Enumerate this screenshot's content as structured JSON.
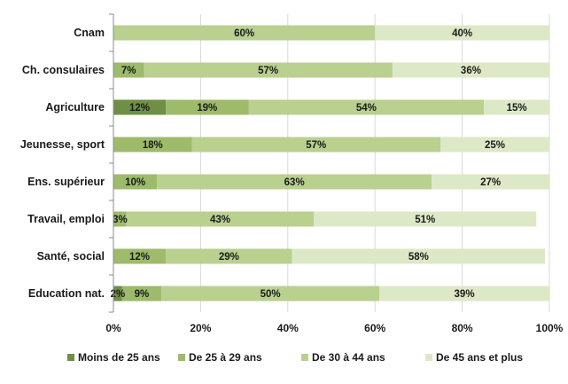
{
  "chart_data": {
    "type": "bar",
    "orientation": "horizontal",
    "stacked": true,
    "categories": [
      "Cnam",
      "Ch. consulaires",
      "Agriculture",
      "Jeunesse, sport",
      "Ens. supérieur",
      "Travail, emploi",
      "Santé, social",
      "Education nat."
    ],
    "series": [
      {
        "name": "Moins de 25 ans",
        "color": "#6e8f45",
        "values": [
          0,
          0,
          12,
          0,
          0,
          0,
          0,
          2
        ],
        "labels": [
          "",
          "",
          "12%",
          "",
          "",
          "",
          "",
          "2%"
        ]
      },
      {
        "name": "De 25 à 29 ans",
        "color": "#9dbb6b",
        "values": [
          0,
          7,
          19,
          18,
          10,
          3,
          12,
          9
        ],
        "labels": [
          "",
          "7%",
          "19%",
          "18%",
          "10%",
          "3%",
          "12%",
          "9%"
        ]
      },
      {
        "name": "De 30 à 44 ans",
        "color": "#b9d08f",
        "values": [
          60,
          57,
          54,
          57,
          63,
          43,
          29,
          50
        ],
        "labels": [
          "60%",
          "57%",
          "54%",
          "57%",
          "63%",
          "43%",
          "29%",
          "50%"
        ]
      },
      {
        "name": "De 45 ans et plus",
        "color": "#dde8c7",
        "values": [
          40,
          36,
          15,
          25,
          27,
          51,
          58,
          39
        ],
        "labels": [
          "40%",
          "36%",
          "15%",
          "25%",
          "27%",
          "51%",
          "58%",
          "39%"
        ]
      }
    ],
    "x_ticks": [
      "0%",
      "20%",
      "40%",
      "60%",
      "80%",
      "100%"
    ],
    "xlim": [
      0,
      100
    ],
    "title": "",
    "xlabel": "",
    "ylabel": "",
    "grid": "vertical",
    "legend_position": "bottom"
  },
  "colors": {
    "grid": "#d9d9d9",
    "axis": "#8c8c8c"
  }
}
